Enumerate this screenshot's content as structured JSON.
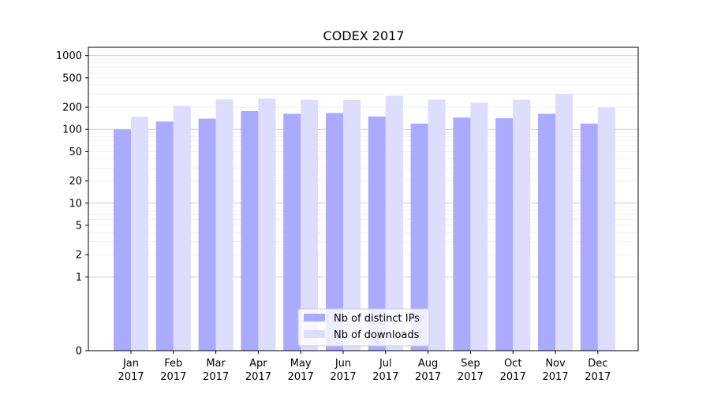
{
  "chart_data": {
    "type": "bar",
    "title": "CODEX 2017",
    "xlabel": "",
    "ylabel": "",
    "yscale": "symlog",
    "ylim": [
      0,
      1300
    ],
    "grid": true,
    "legend_position": "lower-center",
    "categories": [
      {
        "month": "Jan",
        "year": "2017"
      },
      {
        "month": "Feb",
        "year": "2017"
      },
      {
        "month": "Mar",
        "year": "2017"
      },
      {
        "month": "Apr",
        "year": "2017"
      },
      {
        "month": "May",
        "year": "2017"
      },
      {
        "month": "Jun",
        "year": "2017"
      },
      {
        "month": "Jul",
        "year": "2017"
      },
      {
        "month": "Aug",
        "year": "2017"
      },
      {
        "month": "Sep",
        "year": "2017"
      },
      {
        "month": "Oct",
        "year": "2017"
      },
      {
        "month": "Nov",
        "year": "2017"
      },
      {
        "month": "Dec",
        "year": "2017"
      }
    ],
    "y_ticks": [
      {
        "value": 0,
        "label": "0"
      },
      {
        "value": 1,
        "label": "1"
      },
      {
        "value": 2,
        "label": "2"
      },
      {
        "value": 5,
        "label": "5"
      },
      {
        "value": 10,
        "label": "10"
      },
      {
        "value": 20,
        "label": "20"
      },
      {
        "value": 50,
        "label": "50"
      },
      {
        "value": 100,
        "label": "100"
      },
      {
        "value": 200,
        "label": "200"
      },
      {
        "value": 500,
        "label": "500"
      },
      {
        "value": 1000,
        "label": "1000"
      }
    ],
    "series": [
      {
        "name": "Nb of distinct IPs",
        "color": "#aaaaff",
        "values": [
          100,
          128,
          140,
          177,
          163,
          167,
          150,
          120,
          145,
          142,
          163,
          120
        ]
      },
      {
        "name": "Nb of downloads",
        "color": "#ddddff",
        "values": [
          148,
          210,
          255,
          263,
          253,
          250,
          285,
          253,
          230,
          252,
          305,
          200
        ]
      }
    ]
  }
}
